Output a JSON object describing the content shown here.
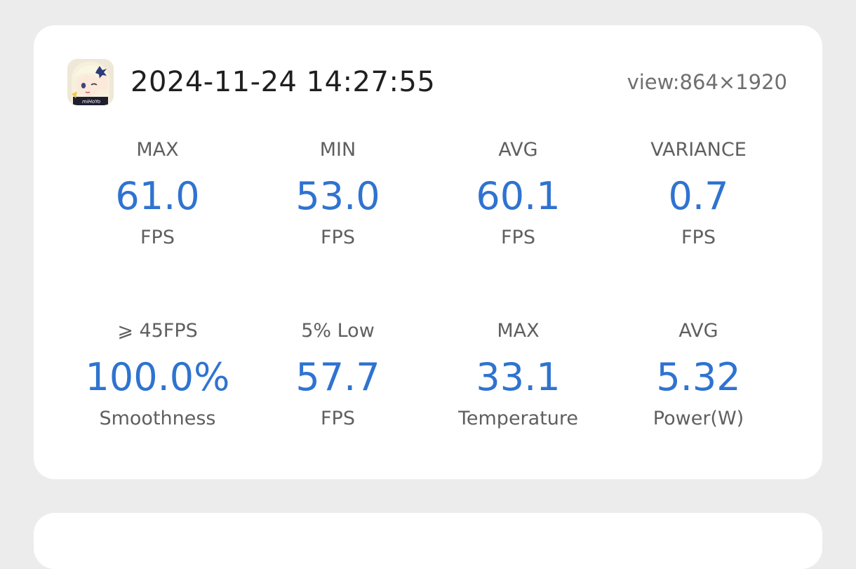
{
  "header": {
    "app_icon": "genshin-impact-app-icon",
    "app_icon_caption": "miHoYo",
    "timestamp": "2024-11-24 14:27:55",
    "view_resolution": "view:864×1920"
  },
  "stats": [
    {
      "label": "MAX",
      "value": "61.0",
      "unit": "FPS"
    },
    {
      "label": "MIN",
      "value": "53.0",
      "unit": "FPS"
    },
    {
      "label": "AVG",
      "value": "60.1",
      "unit": "FPS"
    },
    {
      "label": "VARIANCE",
      "value": "0.7",
      "unit": "FPS"
    },
    {
      "label": "⩾ 45FPS",
      "value": "100.0%",
      "unit": "Smoothness"
    },
    {
      "label": "5% Low",
      "value": "57.7",
      "unit": "FPS"
    },
    {
      "label": "MAX",
      "value": "33.1",
      "unit": "Temperature"
    },
    {
      "label": "AVG",
      "value": "5.32",
      "unit": "Power(W)"
    }
  ],
  "colors": {
    "background": "#ececec",
    "card": "#ffffff",
    "value_accent": "#2f73d0",
    "label_text": "#5f5f5f",
    "title_text": "#1f1f1f"
  }
}
